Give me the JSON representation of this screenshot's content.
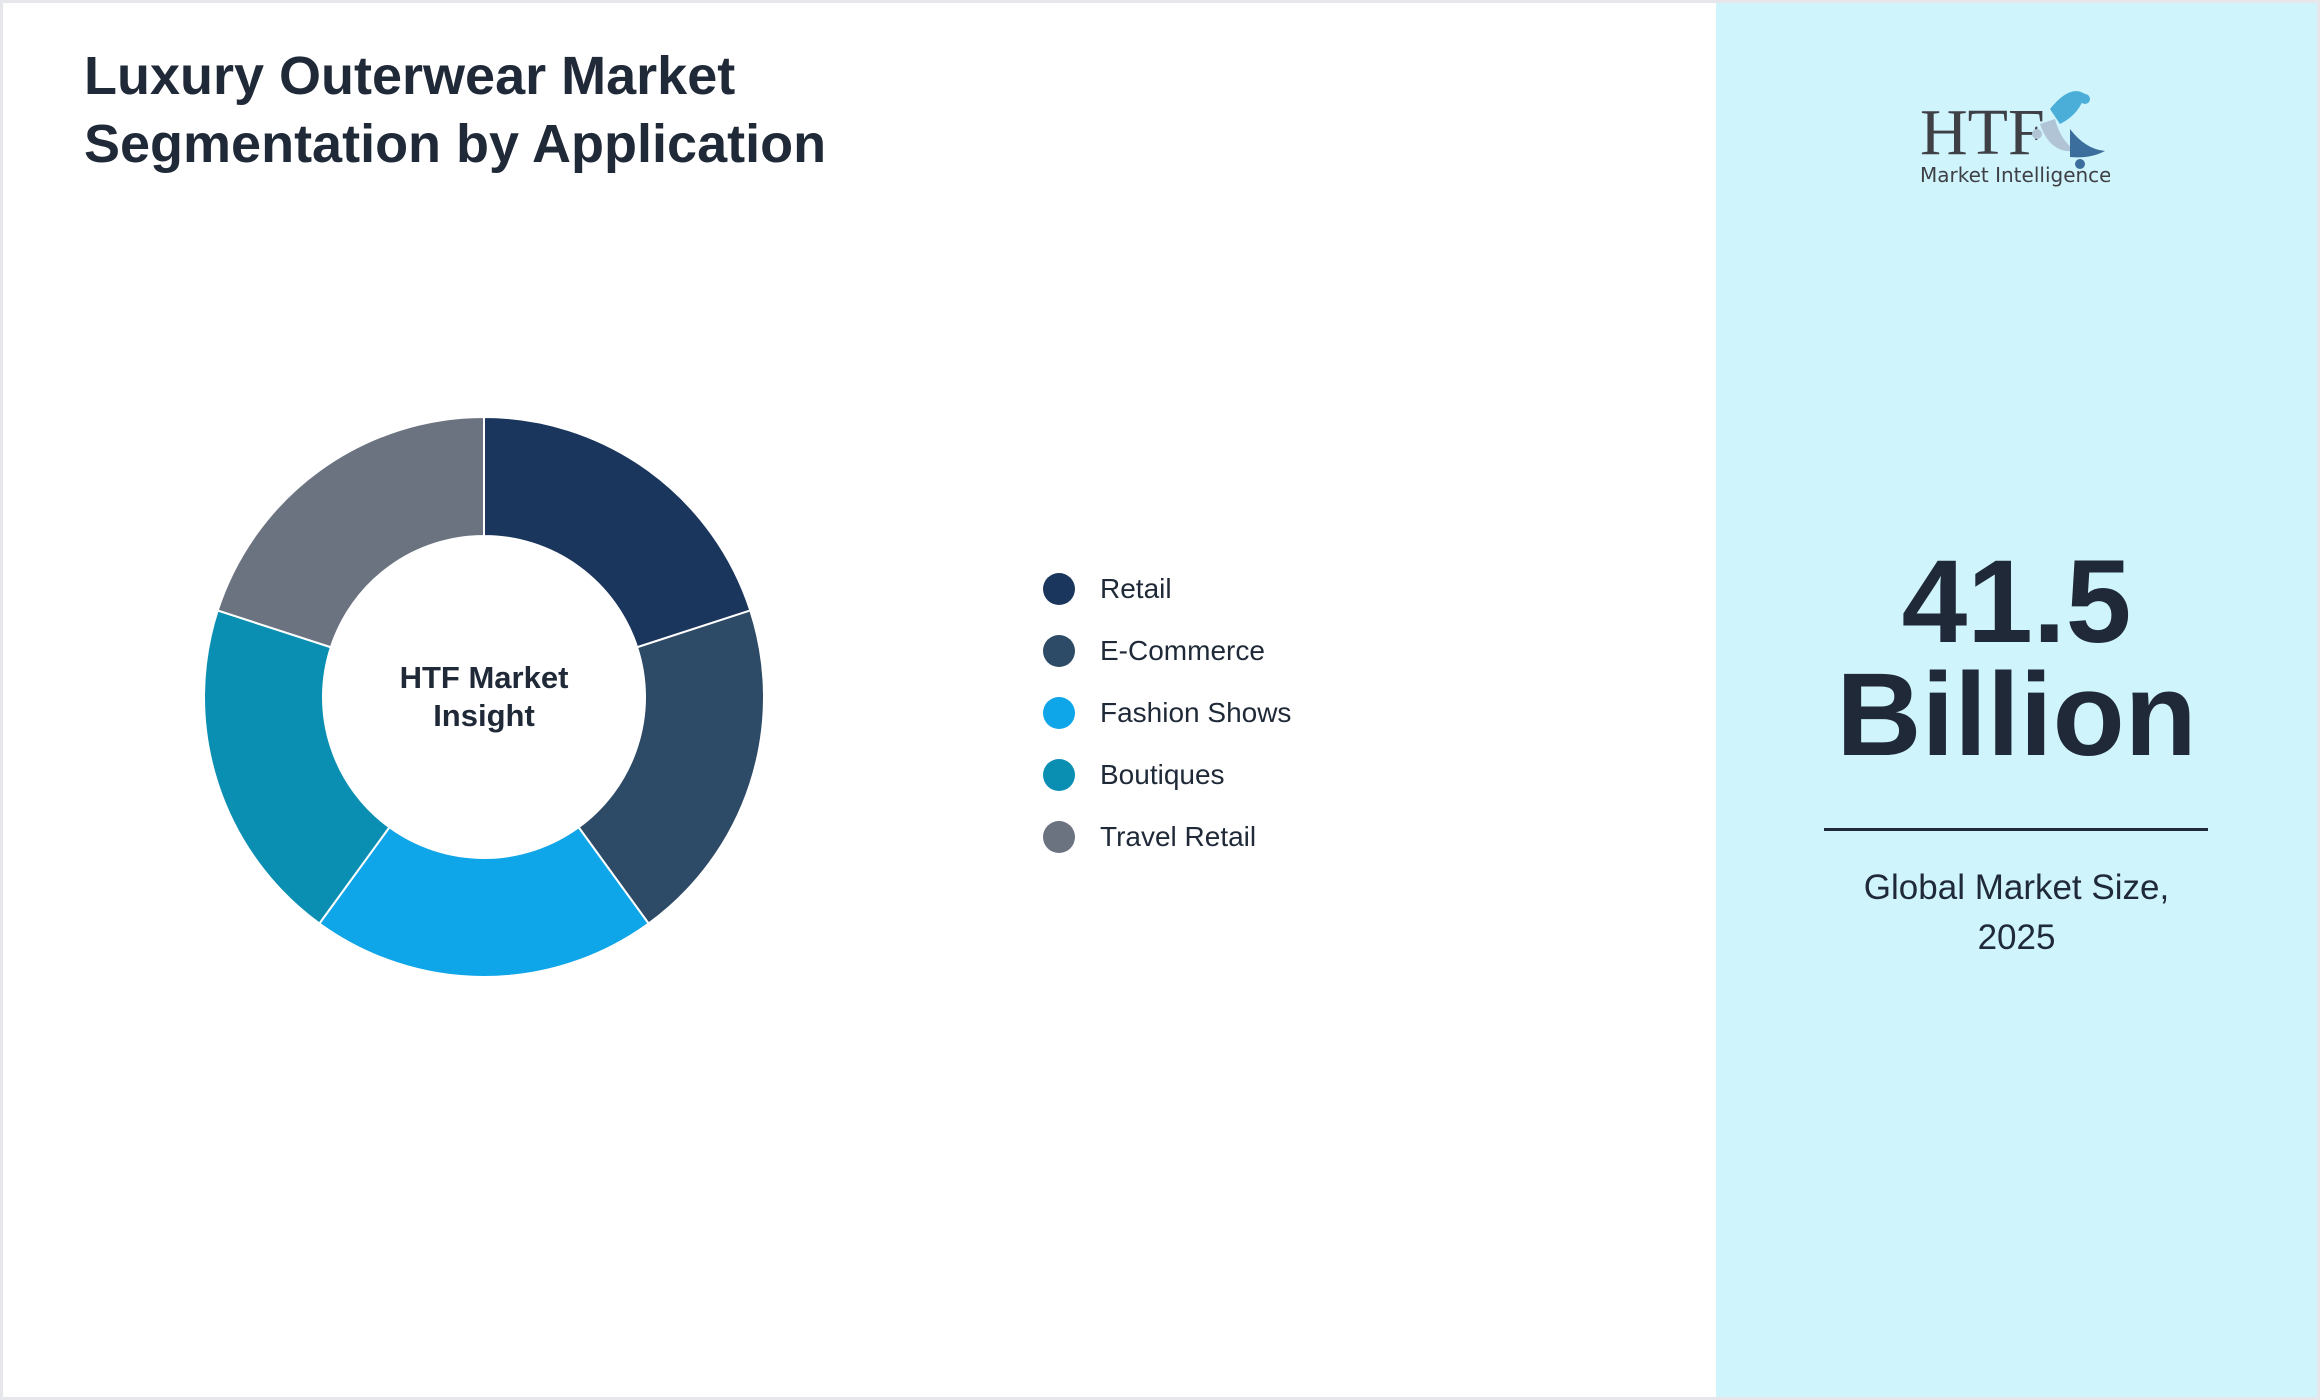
{
  "title_lines": [
    "Luxury Outerwear Market",
    "Segmentation by Application"
  ],
  "chart_data": {
    "type": "pie",
    "variant": "donut",
    "title": "Luxury Outerwear Market Segmentation by Application",
    "center_label_lines": [
      "HTF Market",
      "Insight"
    ],
    "categories": [
      "Retail",
      "E-Commerce",
      "Fashion Shows",
      "Boutiques",
      "Travel Retail"
    ],
    "values": [
      20,
      20,
      20,
      20,
      20
    ],
    "colors": [
      "#1b365d",
      "#2d4a66",
      "#0ea5e9",
      "#0a8fb3",
      "#6b7280"
    ],
    "legend_position": "right"
  },
  "panel": {
    "value_lines": [
      "41.5",
      "Billion"
    ],
    "caption_lines": [
      "Global Market Size,",
      "2025"
    ],
    "background": "#cff4fc"
  },
  "logo": {
    "text_main": "HTF",
    "text_sub": "Market Intelligence"
  }
}
